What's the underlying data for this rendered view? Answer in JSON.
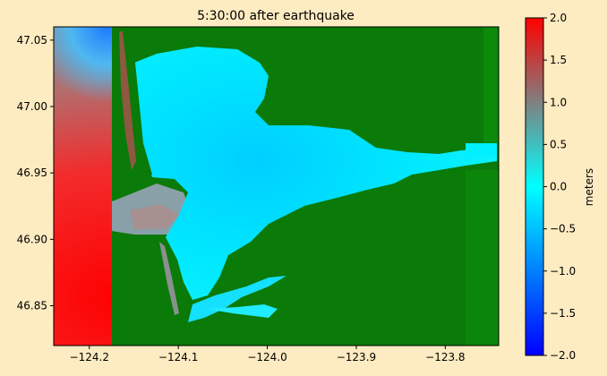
{
  "chart_data": {
    "type": "heatmap",
    "title": "5:30:00 after earthquake",
    "xlabel": "",
    "ylabel": "",
    "xlim": [
      -124.24,
      -123.74
    ],
    "ylim": [
      46.82,
      47.06
    ],
    "x_ticks": [
      -124.2,
      -124.1,
      -124.0,
      -123.9,
      -123.8
    ],
    "x_tick_labels": [
      "−124.2",
      "−124.1",
      "−124.0",
      "−123.9",
      "−123.8"
    ],
    "y_ticks": [
      46.85,
      46.9,
      46.95,
      47.0,
      47.05
    ],
    "y_tick_labels": [
      "46.85",
      "46.90",
      "46.95",
      "47.00",
      "47.05"
    ],
    "grid": false,
    "colorbar": {
      "label": "meters",
      "range": [
        -2.0,
        2.0
      ],
      "ticks": [
        -2.0,
        -1.5,
        -1.0,
        -0.5,
        0.0,
        0.5,
        1.0,
        1.5,
        2.0
      ],
      "tick_labels": [
        "−2.0",
        "−1.5",
        "−1.0",
        "−0.5",
        "0.0",
        "0.5",
        "1.0",
        "1.5",
        "2.0"
      ],
      "colormap_stops": [
        "#0000ff",
        "#0080ff",
        "#00ffff",
        "#808080",
        "#ff0000"
      ]
    },
    "land_color": "#007700",
    "description_values": {
      "open_ocean_sw_value": 2.0,
      "bay_interior_value": -0.3,
      "nw_corner_value": -1.0
    }
  }
}
